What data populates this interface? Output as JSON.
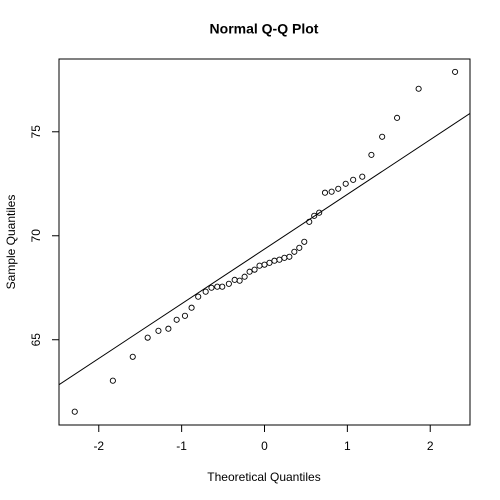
{
  "chart_data": {
    "type": "scatter",
    "title": "Normal Q-Q Plot",
    "xlabel": "Theoretical Quantiles",
    "ylabel": "Sample Quantiles",
    "x": [
      -2.29,
      -1.83,
      -1.59,
      -1.41,
      -1.28,
      -1.16,
      -1.06,
      -0.96,
      -0.88,
      -0.8,
      -0.71,
      -0.64,
      -0.57,
      -0.51,
      -0.43,
      -0.36,
      -0.3,
      -0.24,
      -0.18,
      -0.12,
      -0.06,
      0,
      0.06,
      0.12,
      0.18,
      0.24,
      0.3,
      0.36,
      0.42,
      0.48,
      0.54,
      0.6,
      0.66,
      0.73,
      0.81,
      0.89,
      0.98,
      1.07,
      1.18,
      1.29,
      1.42,
      1.6,
      1.86,
      2.3
    ],
    "values": [
      61.54,
      63.03,
      64.18,
      65.1,
      65.43,
      65.53,
      65.96,
      66.15,
      66.54,
      67.07,
      67.31,
      67.5,
      67.55,
      67.55,
      67.69,
      67.88,
      67.84,
      68.03,
      68.27,
      68.37,
      68.56,
      68.61,
      68.7,
      68.8,
      68.85,
      68.94,
      68.99,
      69.23,
      69.42,
      69.71,
      70.67,
      70.96,
      71.11,
      72.07,
      72.12,
      72.26,
      72.5,
      72.69,
      72.84,
      73.89,
      74.76,
      75.67,
      77.07,
      77.88
    ],
    "color": "#000000",
    "qqline": {
      "intercept": 69.36,
      "slope": 2.63
    },
    "xlim": [
      -2.48,
      2.48
    ],
    "ylim": [
      60.9,
      78.5
    ],
    "xticks": [
      -2,
      -1,
      0,
      1,
      2
    ],
    "yticks": [
      65,
      70,
      75
    ]
  }
}
